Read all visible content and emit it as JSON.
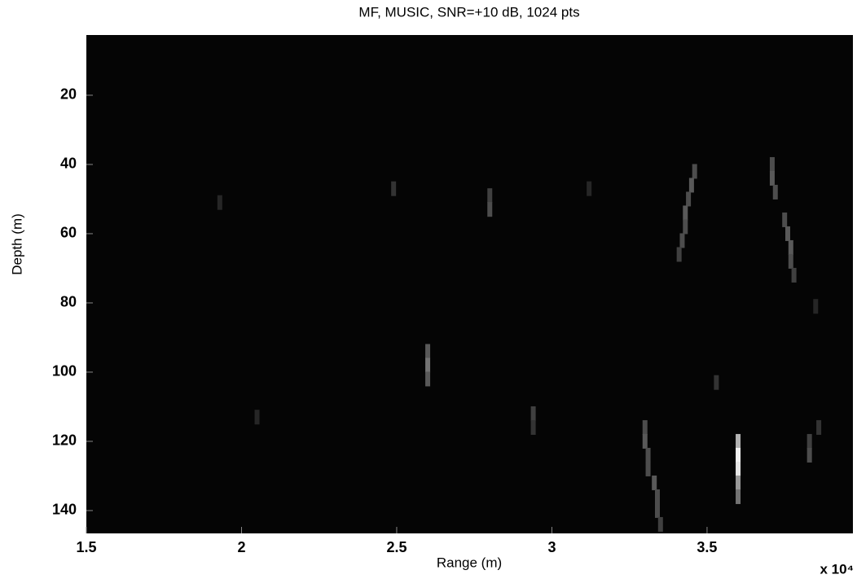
{
  "chart_data": {
    "type": "heatmap",
    "title": "MF, MUSIC, SNR=+10 dB, 1024 pts",
    "x_label": "Range (m)",
    "y_label": "Depth (m)",
    "x_multiplier": "x 10⁴",
    "background": "#050505",
    "xlim": [
      15000,
      39700
    ],
    "ylim": [
      146.6,
      2.6
    ],
    "xticks": [
      {
        "value": 15000,
        "label": "1.5"
      },
      {
        "value": 20000,
        "label": "2"
      },
      {
        "value": 25000,
        "label": "2.5"
      },
      {
        "value": 30000,
        "label": "3"
      },
      {
        "value": 35000,
        "label": "3.5"
      }
    ],
    "yticks": [
      20,
      40,
      60,
      80,
      100,
      120,
      140
    ],
    "x": [
      19300,
      20500,
      24900,
      26000,
      26000,
      26000,
      28000,
      28000,
      29400,
      29400,
      31200,
      34600,
      34500,
      34400,
      34300,
      34300,
      34200,
      34100,
      37100,
      37100,
      37200,
      37500,
      37600,
      37700,
      37700,
      37800,
      35300,
      33000,
      33000,
      33100,
      33100,
      33300,
      33400,
      33400,
      33500,
      36000,
      36000,
      36000,
      36000,
      36000,
      38300,
      38300,
      38600,
      38500
    ],
    "y": [
      51,
      113,
      47,
      94,
      98,
      102,
      49,
      53,
      112,
      116,
      47,
      42,
      46,
      50,
      54,
      58,
      62,
      66,
      40,
      44,
      48,
      56,
      60,
      64,
      68,
      72,
      103,
      116,
      120,
      124,
      128,
      132,
      136,
      140,
      144,
      120,
      124,
      128,
      132,
      136,
      120,
      124,
      116,
      81
    ],
    "values": [
      0.15,
      0.15,
      0.2,
      0.35,
      0.45,
      0.35,
      0.25,
      0.3,
      0.25,
      0.2,
      0.15,
      0.3,
      0.35,
      0.3,
      0.35,
      0.3,
      0.3,
      0.25,
      0.3,
      0.35,
      0.3,
      0.3,
      0.35,
      0.35,
      0.3,
      0.25,
      0.2,
      0.3,
      0.35,
      0.3,
      0.3,
      0.35,
      0.3,
      0.3,
      0.25,
      0.7,
      0.95,
      0.9,
      0.6,
      0.45,
      0.25,
      0.3,
      0.2,
      0.15
    ]
  }
}
